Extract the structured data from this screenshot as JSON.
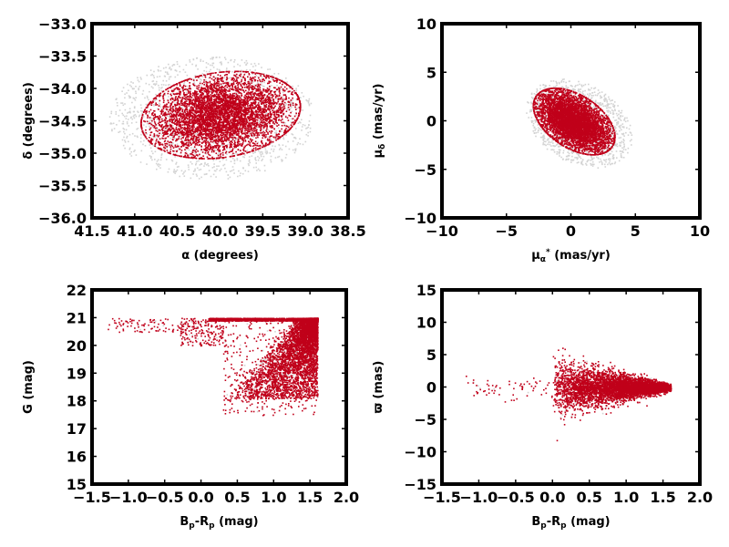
{
  "chart_data": [
    {
      "type": "scatter",
      "id": "ra-dec",
      "xlabel_parts": [
        {
          "t": "α (degrees)",
          "sub": false
        }
      ],
      "ylabel_parts": [
        {
          "t": "δ (degrees)",
          "sub": false
        }
      ],
      "xlim": [
        41.5,
        38.5
      ],
      "ylim": [
        -36.0,
        -33.0
      ],
      "xticks": [
        41.5,
        41.0,
        40.5,
        40.0,
        39.5,
        39.0,
        38.5
      ],
      "xtick_labels": [
        "41.5",
        "41.0",
        "40.5",
        "40.0",
        "39.5",
        "39.0",
        "38.5"
      ],
      "yticks": [
        -36.0,
        -35.5,
        -35.0,
        -34.5,
        -34.0,
        -33.5,
        -33.0
      ],
      "ytick_labels": [
        "−36.0",
        "−35.5",
        "−35.0",
        "−34.5",
        "−34.0",
        "−33.5",
        "−33.0"
      ],
      "series": [
        {
          "color": "#d3d3d3",
          "shape": "ellipse",
          "n": 1300,
          "cx": 40.1,
          "cy": -34.45,
          "rx": 1.2,
          "ry": 0.95,
          "rot": 0,
          "spread": "uniform"
        },
        {
          "color": "#c0001a",
          "shape": "ellipse",
          "n": 5200,
          "cx": 40.0,
          "cy": -34.4,
          "rx": 0.95,
          "ry": 0.65,
          "rot": -15,
          "spread": "core"
        }
      ]
    },
    {
      "type": "scatter",
      "id": "pm",
      "xlabel_parts": [
        {
          "t": "μ",
          "sub": false
        },
        {
          "t": "α",
          "sub": true
        },
        {
          "t": "*",
          "sup": true
        },
        {
          "t": "  (mas/yr)",
          "sub": false
        }
      ],
      "ylabel_parts": [
        {
          "t": "μ",
          "sub": false
        },
        {
          "t": "δ",
          "sub": true
        },
        {
          "t": "  (mas/yr)",
          "sub": false
        }
      ],
      "xlim": [
        -10,
        10
      ],
      "ylim": [
        -10,
        10
      ],
      "xticks": [
        -10,
        -5,
        0,
        5,
        10
      ],
      "xtick_labels": [
        "−10",
        "−5",
        "0",
        "5",
        "10"
      ],
      "yticks": [
        -10,
        -5,
        0,
        5,
        10
      ],
      "ytick_labels": [
        "−10",
        "−5",
        "0",
        "5",
        "10"
      ],
      "series": [
        {
          "color": "#d3d3d3",
          "shape": "ellipse",
          "n": 1100,
          "cx": 0.6,
          "cy": -0.2,
          "rx": 3.6,
          "ry": 5.0,
          "rot": 35,
          "spread": "uniform"
        },
        {
          "color": "#c0001a",
          "shape": "ellipse",
          "n": 5200,
          "cx": 0.2,
          "cy": 0.0,
          "rx": 2.4,
          "ry": 4.0,
          "rot": 40,
          "spread": "core"
        }
      ]
    },
    {
      "type": "scatter",
      "id": "cmd",
      "xlabel_parts": [
        {
          "t": "B",
          "sub": false
        },
        {
          "t": "p",
          "sub": true
        },
        {
          "t": "-R",
          "sub": false
        },
        {
          "t": "p",
          "sub": true
        },
        {
          "t": "  (mag)",
          "sub": false
        }
      ],
      "ylabel_parts": [
        {
          "t": "G (mag)",
          "sub": false
        }
      ],
      "xlim": [
        -1.5,
        2.0
      ],
      "ylim": [
        15,
        22
      ],
      "xticks": [
        -1.5,
        -1.0,
        -0.5,
        0.0,
        0.5,
        1.0,
        1.5,
        2.0
      ],
      "xtick_labels": [
        "−1.5",
        "−1.0",
        "−0.5",
        "0.0",
        "0.5",
        "1.0",
        "1.5",
        "2.0"
      ],
      "yticks": [
        15,
        16,
        17,
        18,
        19,
        20,
        21,
        22
      ],
      "ytick_labels": [
        "15",
        "16",
        "17",
        "18",
        "19",
        "20",
        "21",
        "22"
      ],
      "series": [
        {
          "color": "#d3d3d3",
          "shape": "cmd",
          "n": 500
        },
        {
          "color": "#c0001a",
          "shape": "cmd",
          "n": 6000
        }
      ]
    },
    {
      "type": "scatter",
      "id": "parallax",
      "xlabel_parts": [
        {
          "t": "B",
          "sub": false
        },
        {
          "t": "p",
          "sub": true
        },
        {
          "t": "-R",
          "sub": false
        },
        {
          "t": "p",
          "sub": true
        },
        {
          "t": "  (mag)",
          "sub": false
        }
      ],
      "ylabel_parts": [
        {
          "t": "ϖ (mas)",
          "sub": false
        }
      ],
      "xlim": [
        -1.5,
        2.0
      ],
      "ylim": [
        -15,
        15
      ],
      "xticks": [
        -1.5,
        -1.0,
        -0.5,
        0.0,
        0.5,
        1.0,
        1.5,
        2.0
      ],
      "xtick_labels": [
        "−1.5",
        "−1.0",
        "−0.5",
        "0.0",
        "0.5",
        "1.0",
        "1.5",
        "2.0"
      ],
      "yticks": [
        -15,
        -10,
        -5,
        0,
        5,
        10,
        15
      ],
      "ytick_labels": [
        "−15",
        "−10",
        "−5",
        "0",
        "5",
        "10",
        "15"
      ],
      "series": [
        {
          "color": "#d3d3d3",
          "shape": "parallax",
          "n": 400
        },
        {
          "color": "#c0001a",
          "shape": "parallax",
          "n": 5000
        }
      ]
    }
  ]
}
